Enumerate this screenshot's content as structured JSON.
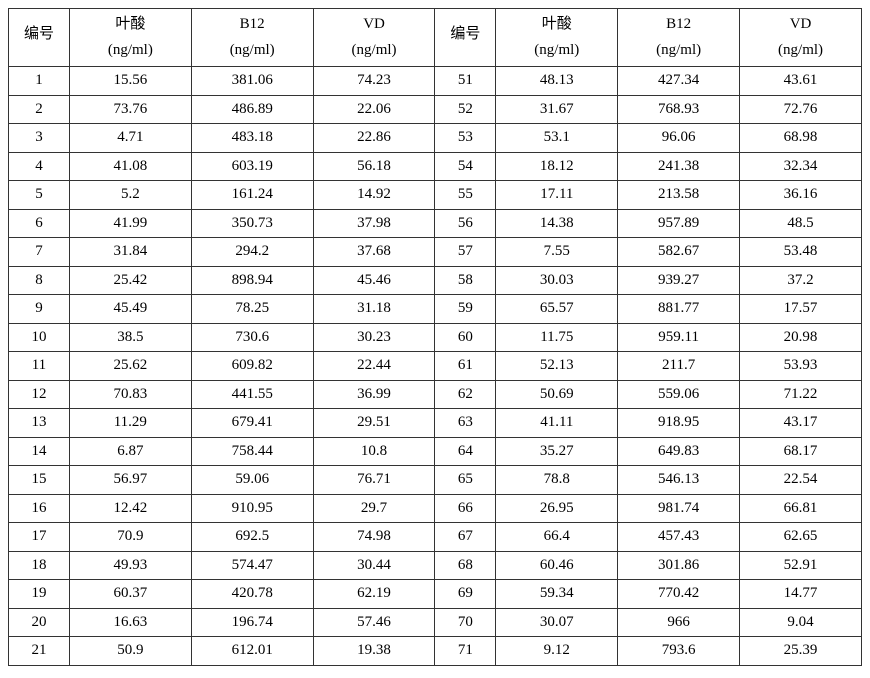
{
  "table": {
    "type": "table",
    "background_color": "#ffffff",
    "border_color": "#333333",
    "text_color": "#000000",
    "font_family": "SimSun, 宋体, serif",
    "unit_font_family": "Times New Roman, serif",
    "header_fontsize": 15,
    "cell_fontsize": 15,
    "header_row_height": 58,
    "data_row_height": 27,
    "columns": [
      {
        "label_cn": "编号",
        "unit": "",
        "width": 58
      },
      {
        "label_cn": "叶酸",
        "unit": "(ng/ml)",
        "width": 116
      },
      {
        "label_cn": "B12",
        "unit": "(ng/ml)",
        "width": 116
      },
      {
        "label_cn": "VD",
        "unit": "(ng/ml)",
        "width": 116
      },
      {
        "label_cn": "编号",
        "unit": "",
        "width": 58
      },
      {
        "label_cn": "叶酸",
        "unit": "(ng/ml)",
        "width": 116
      },
      {
        "label_cn": "B12",
        "unit": "(ng/ml)",
        "width": 116
      },
      {
        "label_cn": "VD",
        "unit": "(ng/ml)",
        "width": 116
      }
    ],
    "rows": [
      [
        "1",
        "15.56",
        "381.06",
        "74.23",
        "51",
        "48.13",
        "427.34",
        "43.61"
      ],
      [
        "2",
        "73.76",
        "486.89",
        "22.06",
        "52",
        "31.67",
        "768.93",
        "72.76"
      ],
      [
        "3",
        "4.71",
        "483.18",
        "22.86",
        "53",
        "53.1",
        "96.06",
        "68.98"
      ],
      [
        "4",
        "41.08",
        "603.19",
        "56.18",
        "54",
        "18.12",
        "241.38",
        "32.34"
      ],
      [
        "5",
        "5.2",
        "161.24",
        "14.92",
        "55",
        "17.11",
        "213.58",
        "36.16"
      ],
      [
        "6",
        "41.99",
        "350.73",
        "37.98",
        "56",
        "14.38",
        "957.89",
        "48.5"
      ],
      [
        "7",
        "31.84",
        "294.2",
        "37.68",
        "57",
        "7.55",
        "582.67",
        "53.48"
      ],
      [
        "8",
        "25.42",
        "898.94",
        "45.46",
        "58",
        "30.03",
        "939.27",
        "37.2"
      ],
      [
        "9",
        "45.49",
        "78.25",
        "31.18",
        "59",
        "65.57",
        "881.77",
        "17.57"
      ],
      [
        "10",
        "38.5",
        "730.6",
        "30.23",
        "60",
        "11.75",
        "959.11",
        "20.98"
      ],
      [
        "11",
        "25.62",
        "609.82",
        "22.44",
        "61",
        "52.13",
        "211.7",
        "53.93"
      ],
      [
        "12",
        "70.83",
        "441.55",
        "36.99",
        "62",
        "50.69",
        "559.06",
        "71.22"
      ],
      [
        "13",
        "11.29",
        "679.41",
        "29.51",
        "63",
        "41.11",
        "918.95",
        "43.17"
      ],
      [
        "14",
        "6.87",
        "758.44",
        "10.8",
        "64",
        "35.27",
        "649.83",
        "68.17"
      ],
      [
        "15",
        "56.97",
        "59.06",
        "76.71",
        "65",
        "78.8",
        "546.13",
        "22.54"
      ],
      [
        "16",
        "12.42",
        "910.95",
        "29.7",
        "66",
        "26.95",
        "981.74",
        "66.81"
      ],
      [
        "17",
        "70.9",
        "692.5",
        "74.98",
        "67",
        "66.4",
        "457.43",
        "62.65"
      ],
      [
        "18",
        "49.93",
        "574.47",
        "30.44",
        "68",
        "60.46",
        "301.86",
        "52.91"
      ],
      [
        "19",
        "60.37",
        "420.78",
        "62.19",
        "69",
        "59.34",
        "770.42",
        "14.77"
      ],
      [
        "20",
        "16.63",
        "196.74",
        "57.46",
        "70",
        "30.07",
        "966",
        "9.04"
      ],
      [
        "21",
        "50.9",
        "612.01",
        "19.38",
        "71",
        "9.12",
        "793.6",
        "25.39"
      ]
    ]
  }
}
